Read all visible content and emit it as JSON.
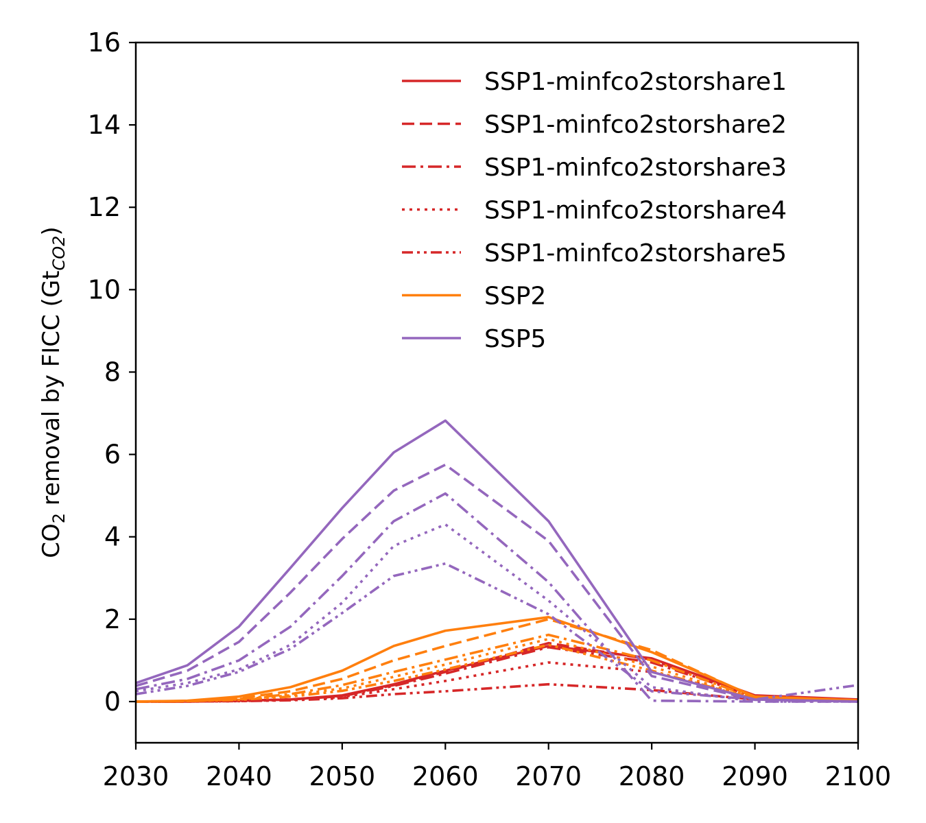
{
  "chart_data": {
    "type": "line",
    "title": "",
    "xlabel": "",
    "ylabel": {
      "main": "CO",
      "sub": "2",
      "rest": " removal by FICC (Gt",
      "unit_sub": "CO2",
      "close": ")"
    },
    "xlim": [
      2030,
      2100
    ],
    "ylim": [
      -1,
      16
    ],
    "xticks": [
      2030,
      2040,
      2050,
      2060,
      2070,
      2080,
      2090,
      2100
    ],
    "yticks": [
      0,
      2,
      4,
      6,
      8,
      10,
      12,
      14,
      16
    ],
    "grid": false,
    "legend_position": "top-right",
    "x": [
      2030,
      2035,
      2040,
      2045,
      2050,
      2055,
      2060,
      2070,
      2080,
      2090,
      2100
    ],
    "series": [
      {
        "name": "SSP1-minfco2storshare1",
        "color": "#d62728",
        "dash": "solid",
        "values": [
          0,
          0,
          0.02,
          0.05,
          0.15,
          0.42,
          0.75,
          1.35,
          1.05,
          0.15,
          0.05
        ]
      },
      {
        "name": "SSP1-minfco2storshare2",
        "color": "#d62728",
        "dash": "dashed",
        "values": [
          0,
          0,
          0.02,
          0.05,
          0.14,
          0.4,
          0.72,
          1.42,
          1.02,
          0.14,
          0.04
        ]
      },
      {
        "name": "SSP1-minfco2storshare3",
        "color": "#d62728",
        "dash": "dashdot",
        "values": [
          0,
          0,
          0.02,
          0.05,
          0.13,
          0.38,
          0.68,
          1.32,
          0.95,
          0.12,
          0.04
        ]
      },
      {
        "name": "SSP1-minfco2storshare4",
        "color": "#d62728",
        "dash": "dotted",
        "values": [
          0,
          0,
          0.01,
          0.04,
          0.11,
          0.3,
          0.5,
          0.95,
          0.72,
          0.1,
          0.03
        ]
      },
      {
        "name": "SSP1-minfco2storshare5",
        "color": "#d62728",
        "dash": "dashdotdot",
        "values": [
          0,
          0,
          0.01,
          0.03,
          0.08,
          0.18,
          0.25,
          0.42,
          0.28,
          0.05,
          0.02
        ]
      },
      {
        "name": "SSP2",
        "color": "#ff7f0e",
        "dash": "solid",
        "values": [
          0,
          0.02,
          0.12,
          0.35,
          0.75,
          1.35,
          1.72,
          2.05,
          1.2,
          0.12,
          0.03
        ]
      },
      {
        "name": "",
        "color": "#ff7f0e",
        "dash": "dashed",
        "values": [
          0,
          0.01,
          0.08,
          0.25,
          0.55,
          1.0,
          1.35,
          2.0,
          1.25,
          0.1,
          0.03
        ]
      },
      {
        "name": "",
        "color": "#ff7f0e",
        "dash": "dashdot",
        "values": [
          0,
          0.01,
          0.06,
          0.18,
          0.4,
          0.72,
          1.02,
          1.62,
          1.0,
          0.08,
          0.02
        ]
      },
      {
        "name": "",
        "color": "#ff7f0e",
        "dash": "dotted",
        "values": [
          0,
          0.01,
          0.05,
          0.15,
          0.32,
          0.6,
          0.9,
          1.52,
          0.85,
          0.07,
          0.02
        ]
      },
      {
        "name": "",
        "color": "#ff7f0e",
        "dash": "dashdotdot",
        "values": [
          0,
          0.01,
          0.04,
          0.12,
          0.26,
          0.5,
          0.78,
          1.38,
          0.75,
          0.06,
          0.02
        ]
      },
      {
        "name": "SSP5",
        "color": "#9467bd",
        "dash": "solid",
        "values": [
          0.45,
          0.88,
          1.82,
          3.25,
          4.7,
          6.05,
          6.82,
          4.38,
          0.72,
          0.05,
          0.0
        ]
      },
      {
        "name": "",
        "color": "#9467bd",
        "dash": "dashed",
        "values": [
          0.38,
          0.75,
          1.45,
          2.65,
          3.95,
          5.12,
          5.75,
          3.9,
          0.62,
          0.04,
          0.0
        ]
      },
      {
        "name": "",
        "color": "#9467bd",
        "dash": "dashdot",
        "values": [
          0.3,
          0.55,
          1.0,
          1.82,
          3.05,
          4.38,
          5.05,
          2.9,
          0.02,
          0.0,
          0.0
        ]
      },
      {
        "name": "",
        "color": "#9467bd",
        "dash": "dotted",
        "values": [
          0.25,
          0.45,
          0.78,
          1.38,
          2.4,
          3.78,
          4.3,
          2.45,
          0.35,
          0.0,
          0.0
        ]
      },
      {
        "name": "",
        "color": "#9467bd",
        "dash": "dashdotdot",
        "values": [
          0.18,
          0.38,
          0.72,
          1.28,
          2.15,
          3.05,
          3.35,
          2.12,
          0.25,
          0.05,
          0.4
        ]
      }
    ]
  }
}
